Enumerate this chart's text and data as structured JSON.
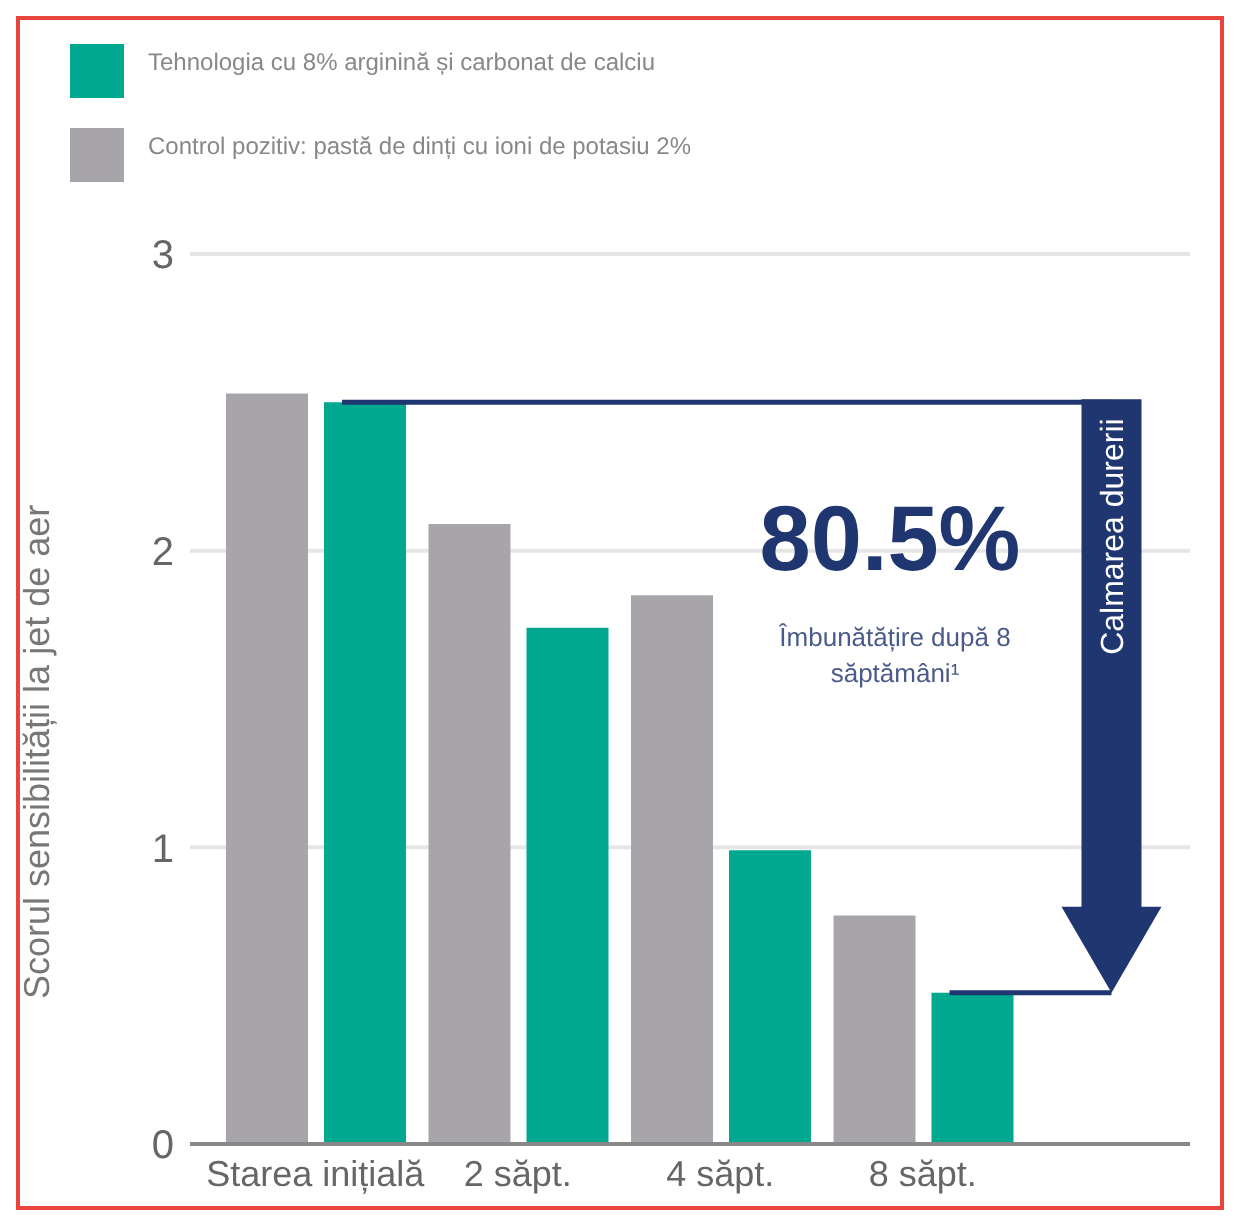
{
  "chart_data": {
    "type": "bar",
    "ylabel": "Scorul sensibilității la jet de aer",
    "categories": [
      "Starea inițială",
      "2 săpt.",
      "4 săpt.",
      "8 săpt."
    ],
    "series": [
      {
        "name": "Control pozitiv: pastă de dinți cu ioni de potasiu 2%",
        "color": "#a7a5aa",
        "values": [
          2.53,
          2.09,
          1.85,
          0.77
        ]
      },
      {
        "name": "Tehnologia cu 8% arginină și carbonat de calciu",
        "color": "#00a88f",
        "values": [
          2.5,
          1.74,
          0.99,
          0.51
        ]
      }
    ],
    "ref_lines": [
      {
        "axis": "y",
        "value": 2.5,
        "color": "#1f3670"
      },
      {
        "axis": "y",
        "value": 0.51,
        "color": "#1f3670"
      }
    ],
    "ylim": [
      0,
      3
    ],
    "yticks": [
      0,
      1,
      2,
      3
    ],
    "grid": "y",
    "legend": "top left",
    "annotations": [
      "80.5%",
      "Îmbunătățire după 8 săptămâni¹",
      "Calmarea durerii"
    ]
  }
}
